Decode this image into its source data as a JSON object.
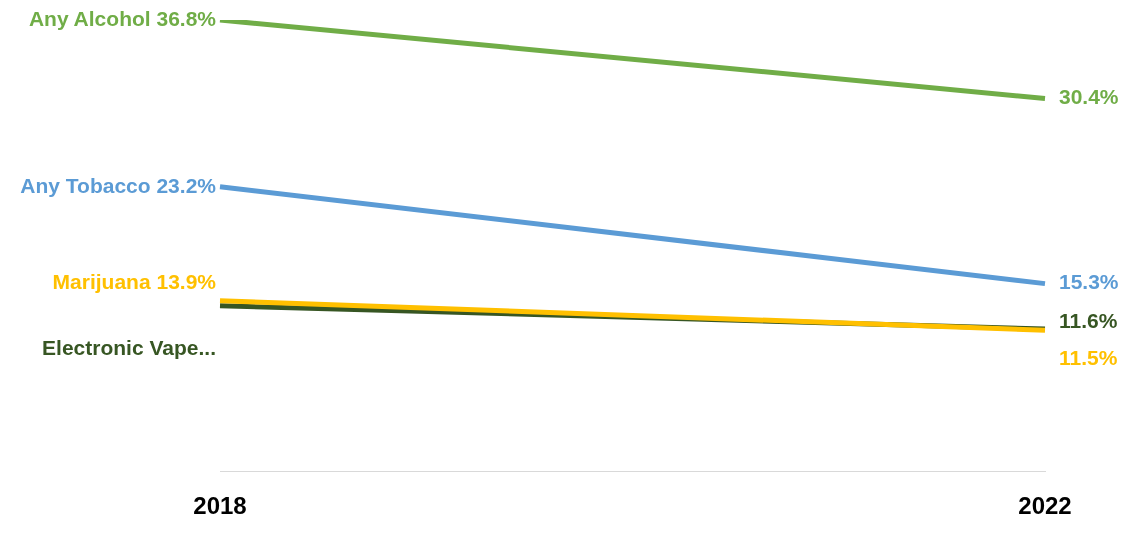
{
  "chart_data": {
    "type": "line",
    "categories": [
      "2018",
      "2022"
    ],
    "tick_labels": "x",
    "grid": false,
    "legend": false,
    "marker": "none",
    "line_style": "solid",
    "series": [
      {
        "name": "Any Alcohol",
        "color": "#70ad47",
        "values": [
          36.8,
          30.4
        ],
        "value_labels": [
          "36.8%",
          "30.4%"
        ]
      },
      {
        "name": "Any Tobacco",
        "color": "#5b9bd5",
        "values": [
          23.2,
          15.3
        ],
        "value_labels": [
          "23.2%",
          "15.3%"
        ]
      },
      {
        "name": "Marijuana",
        "color": "#ffc000",
        "values": [
          13.9,
          11.5
        ],
        "value_labels": [
          "13.9%",
          "11.5%"
        ]
      },
      {
        "name": "Electronic Vape...",
        "color": "#375623",
        "values": [
          13.5,
          11.6
        ],
        "value_labels": [
          null,
          "11.6%"
        ]
      }
    ]
  }
}
